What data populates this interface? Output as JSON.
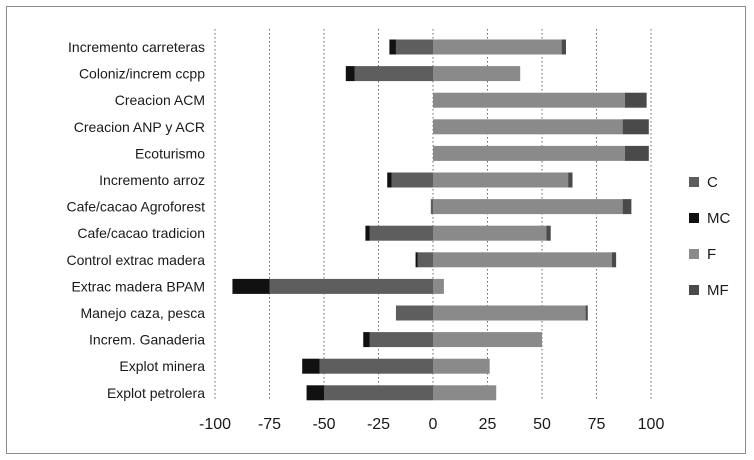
{
  "chart_data": {
    "type": "bar",
    "orientation": "horizontal",
    "stacked": true,
    "categories": [
      "Incremento carreteras",
      "Coloniz/increm ccpp",
      "Creacion ACM",
      "Creacion ANP y ACR",
      "Ecoturismo",
      "Incremento arroz",
      "Cafe/cacao Agroforest",
      "Cafe/cacao tradicion",
      "Control extrac madera",
      "Extrac madera BPAM",
      "Manejo caza, pesca",
      "Increm. Ganaderia",
      "Explot minera",
      "Explot petrolera"
    ],
    "series": [
      {
        "name": "C",
        "color": "#5e5e5e",
        "values": [
          -17,
          -36,
          0,
          0,
          0,
          -19,
          -1,
          -29,
          -7,
          -75,
          -17,
          -29,
          -52,
          -50
        ]
      },
      {
        "name": "MC",
        "color": "#111111",
        "values": [
          -3,
          -4,
          0,
          0,
          0,
          -2,
          0,
          -2,
          -1,
          -17,
          0,
          -3,
          -8,
          -8
        ]
      },
      {
        "name": "F",
        "color": "#8a8a8a",
        "values": [
          59,
          40,
          88,
          87,
          88,
          62,
          87,
          52,
          82,
          5,
          70,
          50,
          26,
          29
        ]
      },
      {
        "name": "MF",
        "color": "#4a4a4a",
        "values": [
          2,
          0,
          10,
          12,
          11,
          2,
          4,
          2,
          2,
          0,
          1,
          0,
          0,
          0
        ]
      }
    ],
    "x_ticks": [
      "-100",
      "-75",
      "-50",
      "-25",
      "0",
      "25",
      "50",
      "75",
      "100"
    ],
    "xlim": [
      -100,
      100
    ],
    "grid": "vertical dotted",
    "legend_position": "right"
  }
}
